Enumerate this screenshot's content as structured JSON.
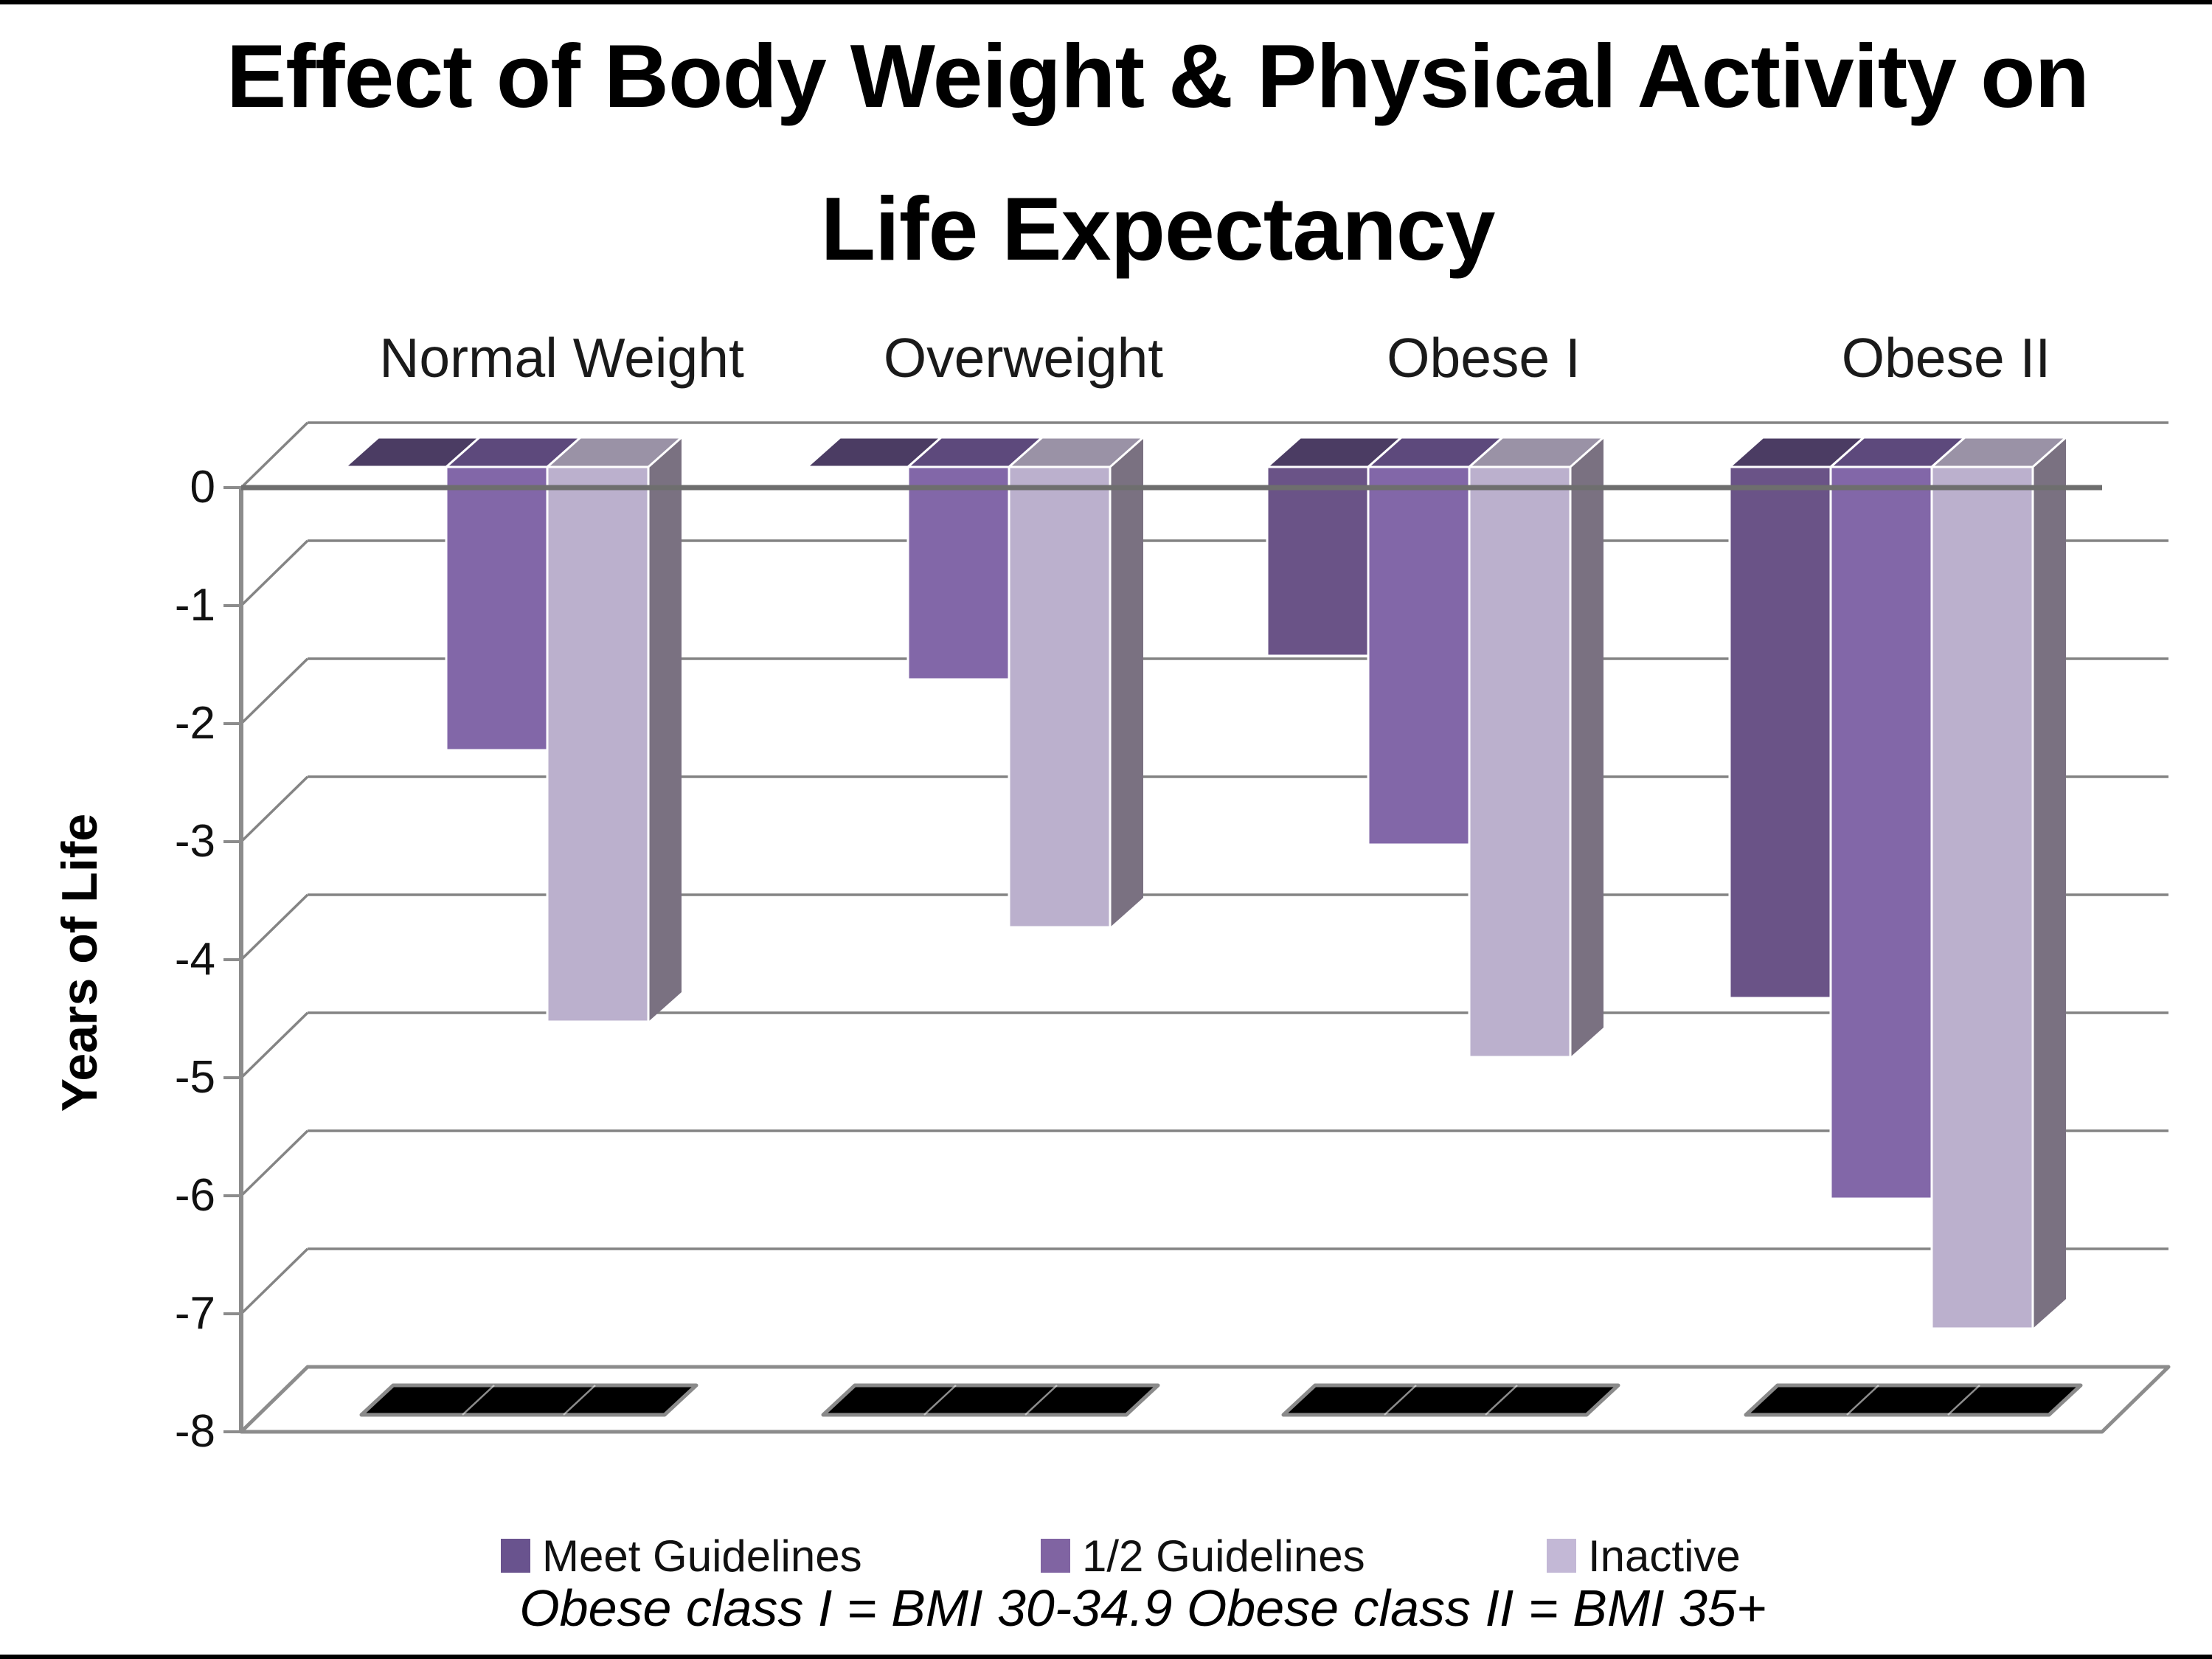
{
  "title": {
    "line1": "Effect of Body Weight & Physical Activity on",
    "line2": "Life Expectancy"
  },
  "y_axis": {
    "title": "Years of Life",
    "ticks": [
      "0",
      "-1",
      "-2",
      "-3",
      "-4",
      "-5",
      "-6",
      "-7",
      "-8"
    ]
  },
  "footnote": "Obese class I =  BMI 30-34.9  Obese class II = BMI 35+",
  "colors": {
    "gridline": "#848484",
    "axis_line": "#8c8c8c",
    "zero_line": "#6e6e6e",
    "floor_outline": "#8c8c8c",
    "strip_fill": "#000000",
    "strip_outline": "#8a8a8a",
    "background": "#ffffff"
  },
  "chart_data": {
    "type": "bar",
    "projection": "3d-clustered-column",
    "title": "Effect of Body Weight & Physical Activity on Life Expectancy",
    "xlabel": "",
    "ylabel": "Years of Life",
    "ylim": [
      -8,
      0
    ],
    "ytick_step": 1,
    "grid": true,
    "legend_position": "bottom",
    "categories": [
      "Normal Weight",
      "Overweight",
      "Obese I",
      "Obese II"
    ],
    "series": [
      {
        "name": "Meet Guidelines",
        "values": [
          0,
          0,
          -1.6,
          -4.5
        ],
        "front": "#6a5387",
        "top": "#4b3c63",
        "side": "#453858",
        "legend": "#69538e"
      },
      {
        "name": "1/2 Guidelines",
        "values": [
          -2.4,
          -1.8,
          -3.2,
          -6.2
        ],
        "front": "#8267a8",
        "top": "#5d497c",
        "side": "#5f4f79",
        "legend": "#8064a2"
      },
      {
        "name": "Inactive",
        "values": [
          -4.7,
          -3.9,
          -5.0,
          -7.3
        ],
        "front": "#bbb0cd",
        "top": "#9a92a6",
        "side": "#7a7181",
        "legend": "#c3b8d6"
      }
    ],
    "floor_shadow_strips": true
  }
}
